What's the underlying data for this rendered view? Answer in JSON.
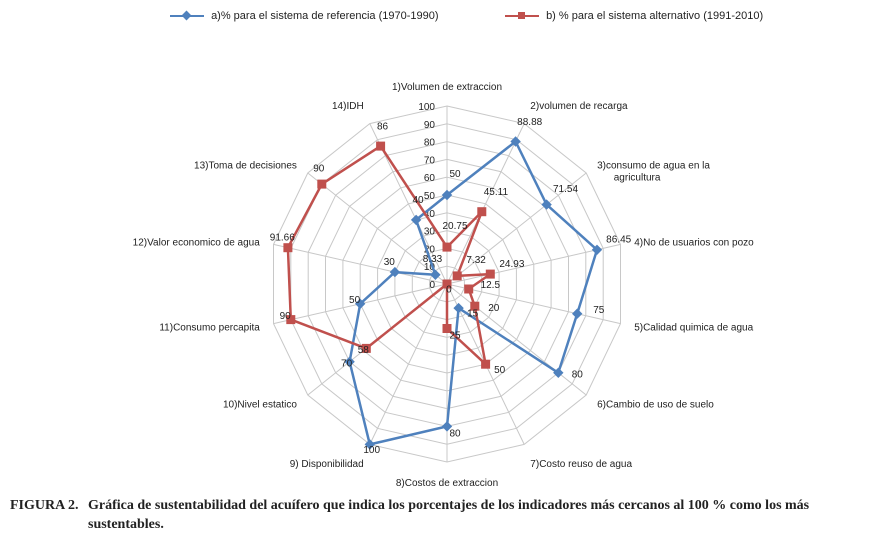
{
  "chart_data": {
    "type": "radar",
    "rmax": 100,
    "ticks": [
      0,
      10,
      20,
      30,
      40,
      50,
      60,
      70,
      80,
      90,
      100
    ],
    "axes": [
      "1)Volumen de extraccion",
      "2)volumen de recarga",
      "3)consumo de agua en la agricultura",
      "4)No de usuarios con pozo",
      "5)Calidad quimica de agua",
      "6)Cambio de uso de suelo",
      "7)Costo reuso de agua",
      "8)Costos de extraccion",
      "9) Disponibilidad",
      "10)Nivel estatico",
      "11)Consumo percapita",
      "12)Valor economico de agua",
      "13)Toma de decisiones",
      "14)IDH"
    ],
    "series": [
      {
        "name": "a)% para el sistema de referencia (1970-1990)",
        "color": "#4f81bd",
        "marker": "diamond",
        "values": [
          50,
          88.88,
          71.54,
          86.45,
          75,
          80,
          15,
          80,
          100,
          70,
          50,
          30,
          8.33,
          40
        ],
        "labels": [
          "50",
          "88.88",
          "71.54",
          "86.45",
          "75",
          "80",
          "15",
          "80",
          "100",
          "70",
          "50",
          "30",
          "8.33",
          "40"
        ]
      },
      {
        "name": "b) % para el sistema alternativo (1991-2010)",
        "color": "#c0504d",
        "marker": "square",
        "values": [
          20.75,
          45.11,
          7.32,
          24.93,
          12.5,
          20,
          50,
          25,
          0,
          58,
          90,
          91.66,
          90,
          86
        ],
        "labels": [
          "20.75",
          "45.11",
          "7.32",
          "24.93",
          "12.5",
          "20",
          "50",
          "25",
          "0",
          "58",
          "90",
          "91.66",
          "90",
          "86"
        ]
      }
    ]
  },
  "caption": {
    "label": "FIGURA 2.",
    "text": "Gráfica de sustentabilidad del acuífero que indica los porcentajes de los indicadores más cercanos al 100 % como los más sustentables.",
    "text_line1": "Gráfica de sustentabilidad del acuífero que indica los porcentajes de los indicadores más cercanos al 100 % como los más",
    "text_line2": "sustentables."
  }
}
